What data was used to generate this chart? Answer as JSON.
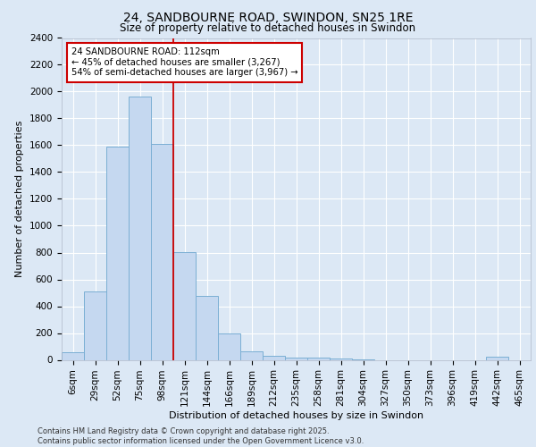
{
  "title_line1": "24, SANDBOURNE ROAD, SWINDON, SN25 1RE",
  "title_line2": "Size of property relative to detached houses in Swindon",
  "xlabel": "Distribution of detached houses by size in Swindon",
  "ylabel": "Number of detached properties",
  "footer_line1": "Contains HM Land Registry data © Crown copyright and database right 2025.",
  "footer_line2": "Contains public sector information licensed under the Open Government Licence v3.0.",
  "categories": [
    "6sqm",
    "29sqm",
    "52sqm",
    "75sqm",
    "98sqm",
    "121sqm",
    "144sqm",
    "166sqm",
    "189sqm",
    "212sqm",
    "235sqm",
    "258sqm",
    "281sqm",
    "304sqm",
    "327sqm",
    "350sqm",
    "373sqm",
    "396sqm",
    "419sqm",
    "442sqm",
    "465sqm"
  ],
  "values": [
    55,
    510,
    1590,
    1960,
    1610,
    805,
    480,
    200,
    65,
    30,
    20,
    15,
    10,
    5,
    0,
    0,
    0,
    0,
    0,
    25,
    0
  ],
  "bar_color": "#c5d8f0",
  "bar_edge_color": "#7bafd4",
  "vline_position": 4.5,
  "vline_color": "#cc0000",
  "annotation_title": "24 SANDBOURNE ROAD: 112sqm",
  "annotation_line2": "← 45% of detached houses are smaller (3,267)",
  "annotation_line3": "54% of semi-detached houses are larger (3,967) →",
  "annotation_box_edgecolor": "#cc0000",
  "annotation_bg": "#ffffff",
  "ylim": [
    0,
    2400
  ],
  "yticks": [
    0,
    200,
    400,
    600,
    800,
    1000,
    1200,
    1400,
    1600,
    1800,
    2000,
    2200,
    2400
  ],
  "background_color": "#dce8f5",
  "axes_bg_color": "#dce8f5",
  "grid_color": "#ffffff",
  "title_fontsize": 10,
  "subtitle_fontsize": 8.5,
  "ylabel_fontsize": 8,
  "xlabel_fontsize": 8,
  "tick_fontsize": 7.5,
  "footer_fontsize": 6
}
